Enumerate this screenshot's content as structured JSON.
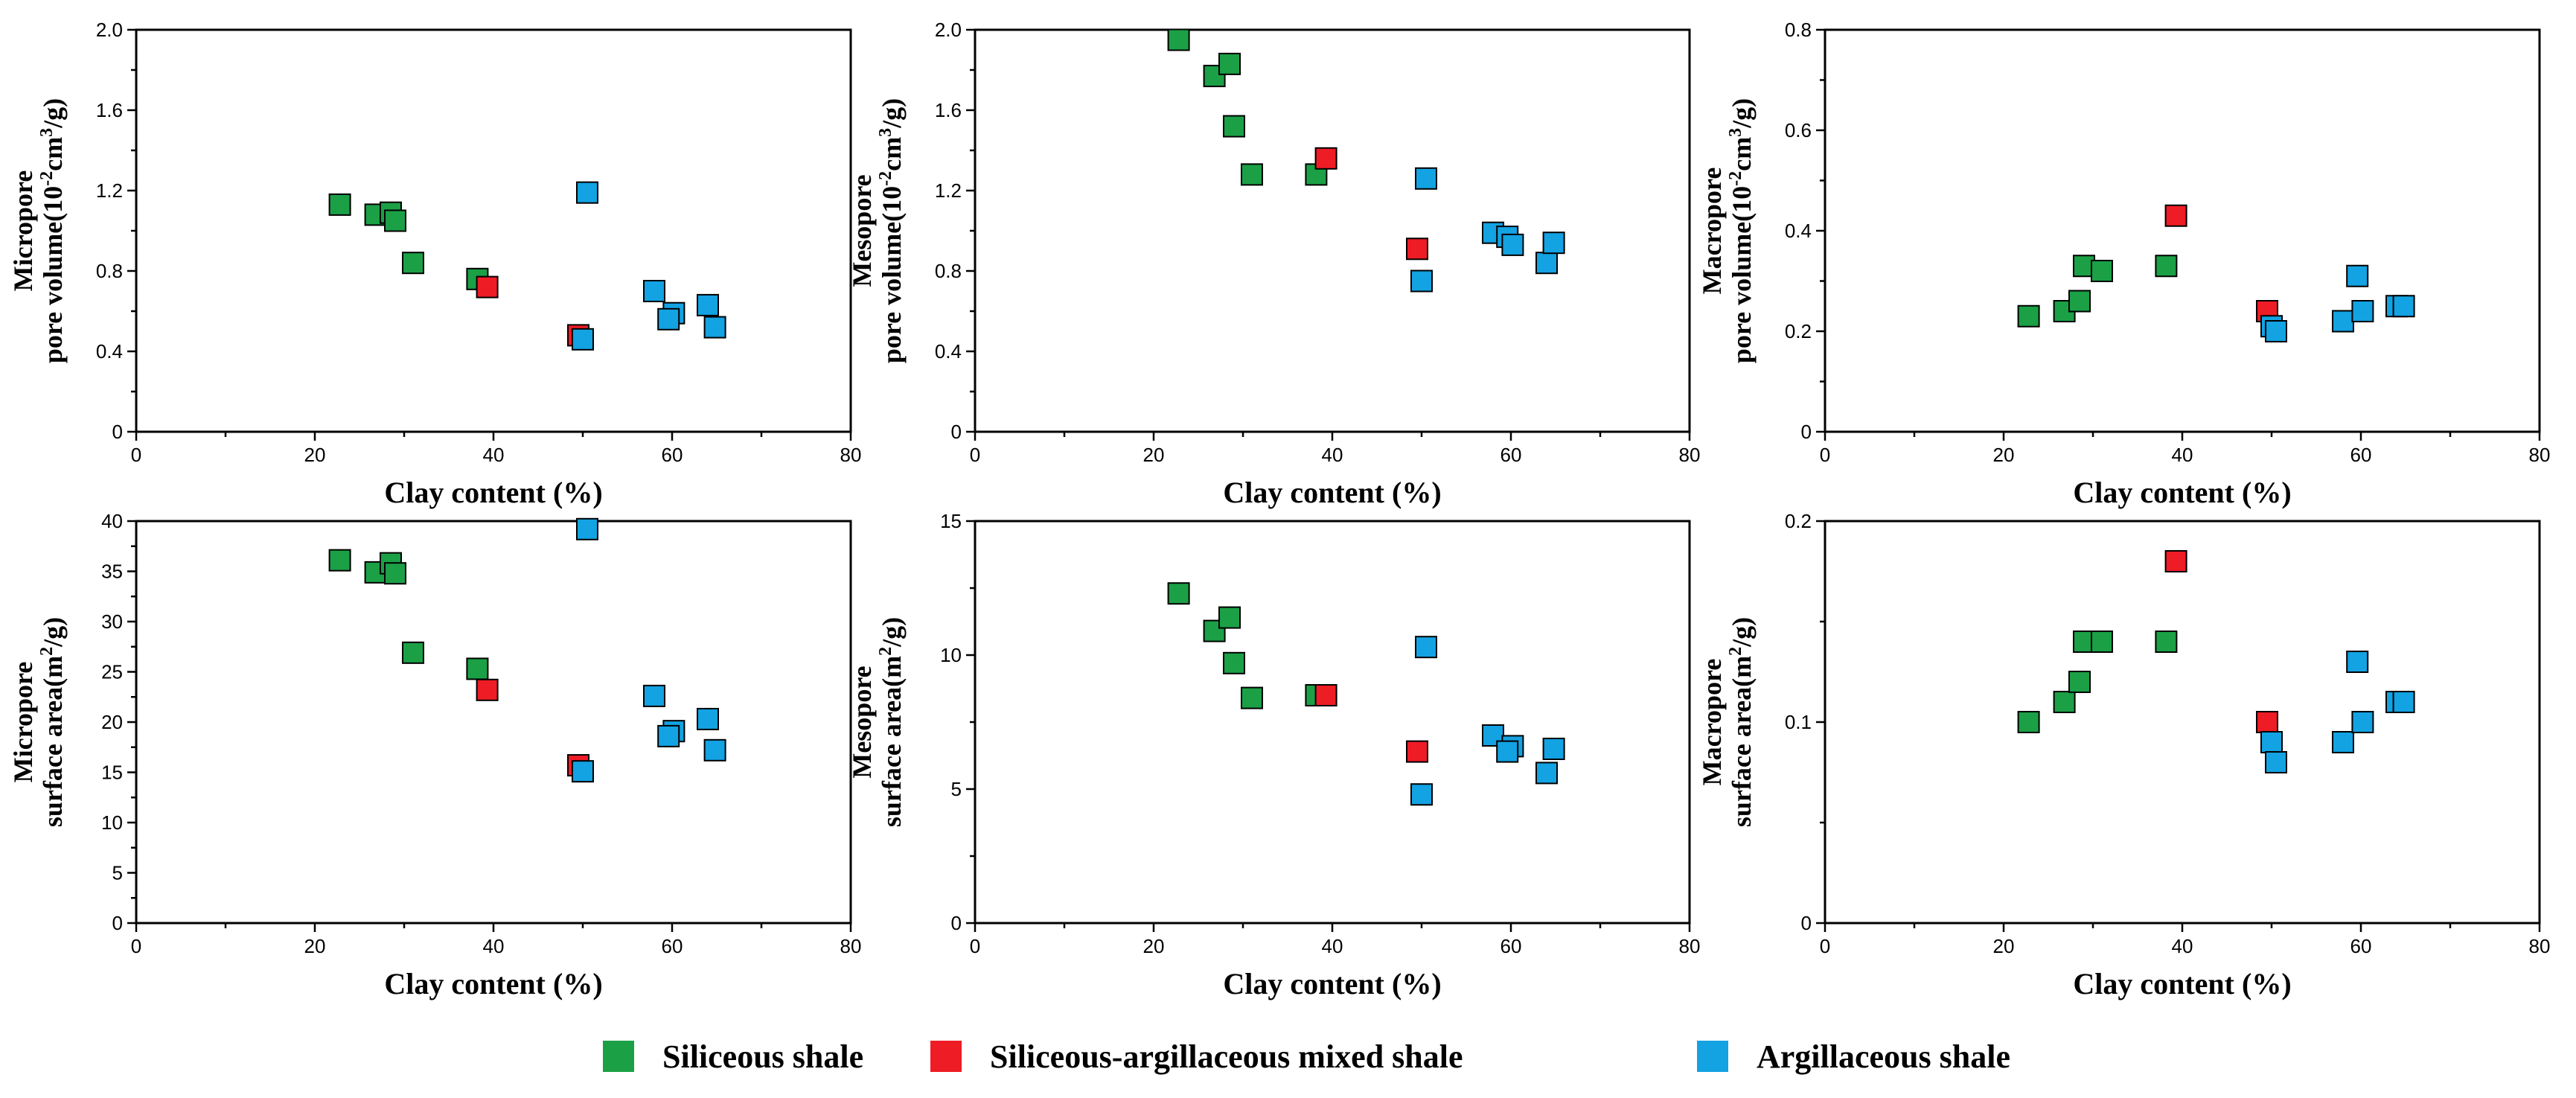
{
  "colors": {
    "Siliceous shale": "#1ba046",
    "Siliceous-argillaceous mixed shale": "#ee1c25",
    "Argillaceous shale": "#13a2e2"
  },
  "legend": [
    "Siliceous shale",
    "Siliceous-argillaceous mixed shale",
    "Argillaceous shale"
  ],
  "chart_data": [
    {
      "type": "scatter",
      "xlabel": "Clay content (%)",
      "ylabel_lines": [
        "Micropore",
        "pore volume(10",
        "-2",
        "cm",
        "3",
        "/g)"
      ],
      "ylabel_kind": "pv",
      "ylabel_text": "Micropore pore volume(10-2cm3/g)",
      "xlim": [
        0,
        80
      ],
      "ylim": [
        0,
        2.0
      ],
      "xticks": [
        0,
        20,
        40,
        60,
        80
      ],
      "yticks": [
        0,
        0.4,
        0.8,
        1.2,
        1.6,
        2.0
      ],
      "ytick_labels": [
        "0",
        "0.4",
        "0.8",
        "1.2",
        "1.6",
        "2.0"
      ],
      "series": [
        {
          "name": "Siliceous shale",
          "points": [
            [
              22.8,
              1.13
            ],
            [
              26.8,
              1.08
            ],
            [
              28.5,
              1.09
            ],
            [
              29.0,
              1.05
            ],
            [
              31.0,
              0.84
            ],
            [
              38.2,
              0.76
            ]
          ]
        },
        {
          "name": "Siliceous-argillaceous mixed shale",
          "points": [
            [
              39.3,
              0.72
            ],
            [
              49.5,
              0.48
            ]
          ]
        },
        {
          "name": "Argillaceous shale",
          "points": [
            [
              50.0,
              0.46
            ],
            [
              50.5,
              1.19
            ],
            [
              58.0,
              0.7
            ],
            [
              60.2,
              0.59
            ],
            [
              59.6,
              0.56
            ],
            [
              64.0,
              0.63
            ],
            [
              64.8,
              0.52
            ]
          ]
        }
      ]
    },
    {
      "type": "scatter",
      "xlabel": "Clay content (%)",
      "ylabel_kind": "pv",
      "ylabel_text": "Mesopore pore volume(10-2cm3/g)",
      "ylabel_lines": [
        "Mesopore",
        "pore volume(10",
        "-2",
        "cm",
        "3",
        "/g)"
      ],
      "xlim": [
        0,
        80
      ],
      "ylim": [
        0,
        2.0
      ],
      "xticks": [
        0,
        20,
        40,
        60,
        80
      ],
      "yticks": [
        0,
        0.4,
        0.8,
        1.2,
        1.6,
        2.0
      ],
      "ytick_labels": [
        "0",
        "0.4",
        "0.8",
        "1.2",
        "1.6",
        "2.0"
      ],
      "series": [
        {
          "name": "Siliceous shale",
          "points": [
            [
              22.8,
              1.95
            ],
            [
              26.8,
              1.77
            ],
            [
              28.5,
              1.83
            ],
            [
              29.0,
              1.52
            ],
            [
              31.0,
              1.28
            ],
            [
              38.2,
              1.28
            ]
          ]
        },
        {
          "name": "Siliceous-argillaceous mixed shale",
          "points": [
            [
              39.3,
              1.36
            ],
            [
              49.5,
              0.91
            ]
          ]
        },
        {
          "name": "Argillaceous shale",
          "points": [
            [
              50.0,
              0.75
            ],
            [
              50.5,
              1.26
            ],
            [
              58.0,
              0.99
            ],
            [
              59.6,
              0.97
            ],
            [
              60.2,
              0.93
            ],
            [
              64.0,
              0.84
            ],
            [
              64.8,
              0.94
            ]
          ]
        }
      ]
    },
    {
      "type": "scatter",
      "xlabel": "Clay content (%)",
      "ylabel_kind": "pv",
      "ylabel_text": "Macropore pore volume(10-2cm3/g)",
      "ylabel_lines": [
        "Macropore",
        "pore volume(10",
        "-2",
        "cm",
        "3",
        "/g)"
      ],
      "xlim": [
        0,
        80
      ],
      "ylim": [
        0,
        0.8
      ],
      "xticks": [
        0,
        20,
        40,
        60,
        80
      ],
      "yticks": [
        0,
        0.2,
        0.4,
        0.6,
        0.8
      ],
      "ytick_labels": [
        "0",
        "0.2",
        "0.4",
        "0.6",
        "0.8"
      ],
      "series": [
        {
          "name": "Siliceous shale",
          "points": [
            [
              22.8,
              0.23
            ],
            [
              26.8,
              0.24
            ],
            [
              28.5,
              0.26
            ],
            [
              29.0,
              0.33
            ],
            [
              31.0,
              0.32
            ],
            [
              38.2,
              0.33
            ]
          ]
        },
        {
          "name": "Siliceous-argillaceous mixed shale",
          "points": [
            [
              39.3,
              0.43
            ],
            [
              49.5,
              0.24
            ]
          ]
        },
        {
          "name": "Argillaceous shale",
          "points": [
            [
              50.0,
              0.21
            ],
            [
              50.5,
              0.2
            ],
            [
              58.0,
              0.22
            ],
            [
              59.6,
              0.31
            ],
            [
              60.2,
              0.24
            ],
            [
              64.0,
              0.25
            ],
            [
              64.8,
              0.25
            ]
          ]
        }
      ]
    },
    {
      "type": "scatter",
      "xlabel": "Clay content (%)",
      "ylabel_kind": "sa",
      "ylabel_text": "Micropore surface area(m2/g)",
      "ylabel_lines": [
        "Micropore",
        "surface area(m",
        "2",
        "/g)"
      ],
      "xlim": [
        0,
        80
      ],
      "ylim": [
        0,
        40
      ],
      "xticks": [
        0,
        20,
        40,
        60,
        80
      ],
      "yticks": [
        0,
        5,
        10,
        15,
        20,
        25,
        30,
        35,
        40
      ],
      "ytick_labels": [
        "0",
        "5",
        "10",
        "15",
        "20",
        "25",
        "30",
        "35",
        "40"
      ],
      "series": [
        {
          "name": "Siliceous shale",
          "points": [
            [
              22.8,
              36.1
            ],
            [
              26.8,
              34.9
            ],
            [
              28.5,
              35.8
            ],
            [
              29.0,
              34.8
            ],
            [
              31.0,
              26.9
            ],
            [
              38.2,
              25.3
            ]
          ]
        },
        {
          "name": "Siliceous-argillaceous mixed shale",
          "points": [
            [
              39.3,
              23.2
            ],
            [
              49.5,
              15.7
            ]
          ]
        },
        {
          "name": "Argillaceous shale",
          "points": [
            [
              50.0,
              15.1
            ],
            [
              50.5,
              39.2
            ],
            [
              58.0,
              22.6
            ],
            [
              60.2,
              19.1
            ],
            [
              59.6,
              18.6
            ],
            [
              64.0,
              20.3
            ],
            [
              64.8,
              17.2
            ]
          ]
        }
      ]
    },
    {
      "type": "scatter",
      "xlabel": "Clay content (%)",
      "ylabel_kind": "sa",
      "ylabel_text": "Mesopore surface area(m2/g)",
      "ylabel_lines": [
        "Mesopore",
        "surface area(m",
        "2",
        "/g)"
      ],
      "xlim": [
        0,
        80
      ],
      "ylim": [
        0,
        15
      ],
      "xticks": [
        0,
        20,
        40,
        60,
        80
      ],
      "yticks": [
        0,
        5,
        10,
        15
      ],
      "ytick_labels": [
        "0",
        "5",
        "10",
        "15"
      ],
      "series": [
        {
          "name": "Siliceous shale",
          "points": [
            [
              22.8,
              12.3
            ],
            [
              26.8,
              10.9
            ],
            [
              28.5,
              11.4
            ],
            [
              29.0,
              9.7
            ],
            [
              31.0,
              8.4
            ],
            [
              38.2,
              8.5
            ]
          ]
        },
        {
          "name": "Siliceous-argillaceous mixed shale",
          "points": [
            [
              39.3,
              8.5
            ],
            [
              49.5,
              6.4
            ]
          ]
        },
        {
          "name": "Argillaceous shale",
          "points": [
            [
              50.0,
              4.8
            ],
            [
              50.5,
              10.3
            ],
            [
              58.0,
              7.0
            ],
            [
              60.2,
              6.6
            ],
            [
              59.6,
              6.4
            ],
            [
              64.0,
              5.6
            ],
            [
              64.8,
              6.5
            ]
          ]
        }
      ]
    },
    {
      "type": "scatter",
      "xlabel": "Clay content (%)",
      "ylabel_kind": "sa",
      "ylabel_text": "Macropore surface area(m2/g)",
      "ylabel_lines": [
        "Macropore",
        "surface area(m",
        "2",
        "/g)"
      ],
      "xlim": [
        0,
        80
      ],
      "ylim": [
        0,
        0.2
      ],
      "xticks": [
        0,
        20,
        40,
        60,
        80
      ],
      "yticks": [
        0,
        0.1,
        0.2
      ],
      "ytick_labels": [
        "0",
        "0.1",
        "0.2"
      ],
      "series": [
        {
          "name": "Siliceous shale",
          "points": [
            [
              22.8,
              0.1
            ],
            [
              26.8,
              0.11
            ],
            [
              28.5,
              0.12
            ],
            [
              29.0,
              0.14
            ],
            [
              31.0,
              0.14
            ],
            [
              38.2,
              0.14
            ]
          ]
        },
        {
          "name": "Siliceous-argillaceous mixed shale",
          "points": [
            [
              39.3,
              0.18
            ],
            [
              49.5,
              0.1
            ]
          ]
        },
        {
          "name": "Argillaceous shale",
          "points": [
            [
              50.0,
              0.09
            ],
            [
              50.5,
              0.08
            ],
            [
              58.0,
              0.09
            ],
            [
              59.6,
              0.13
            ],
            [
              60.2,
              0.1
            ],
            [
              64.0,
              0.11
            ],
            [
              64.8,
              0.11
            ]
          ]
        }
      ]
    }
  ]
}
